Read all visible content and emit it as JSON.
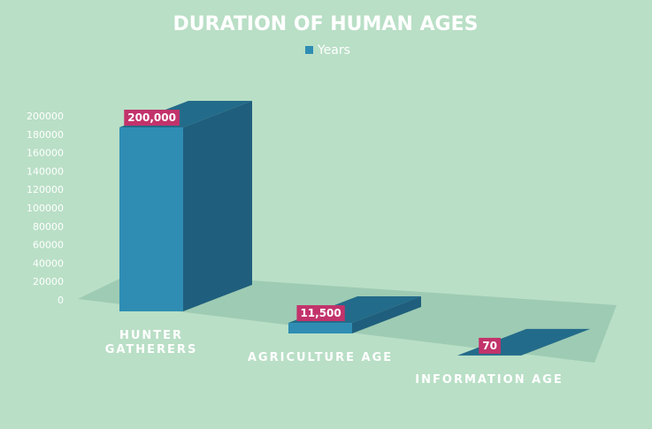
{
  "chart_data": {
    "type": "bar3d",
    "title": "DURATION OF HUMAN AGES",
    "categories": [
      "HUNTER GATHERERS",
      "AGRICULTURE AGE",
      "INFORMATION AGE"
    ],
    "series": [
      {
        "name": "Years",
        "color": "#2f8db3",
        "values": [
          200000,
          11500,
          70
        ],
        "value_labels": [
          "200,000",
          "11,500",
          "70"
        ]
      }
    ],
    "ylim": [
      0,
      200000
    ],
    "yticks": [
      0,
      20000,
      40000,
      60000,
      80000,
      100000,
      120000,
      140000,
      160000,
      180000,
      200000
    ],
    "legend": "top"
  }
}
